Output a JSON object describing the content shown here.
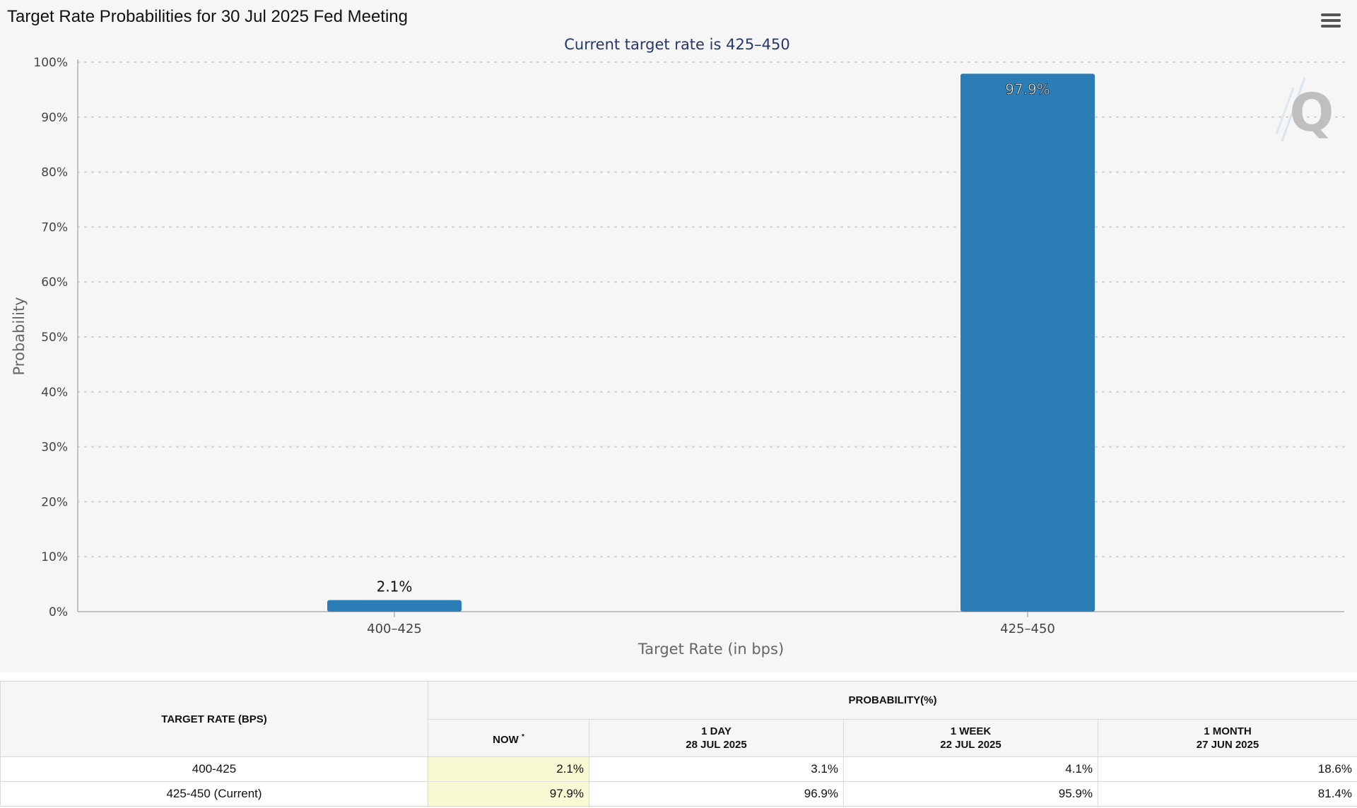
{
  "chart_data": {
    "type": "bar",
    "title": "Target Rate Probabilities for 30 Jul 2025 Fed Meeting",
    "subtitle": "Current target rate is 425–450",
    "xlabel": "Target Rate (in bps)",
    "ylabel": "Probability",
    "categories": [
      "400–425",
      "425–450"
    ],
    "values": [
      2.1,
      97.9
    ],
    "data_labels": [
      "2.1%",
      "97.9%"
    ],
    "ylim": [
      0,
      100
    ],
    "yticks": [
      0,
      10,
      20,
      30,
      40,
      50,
      60,
      70,
      80,
      90,
      100
    ],
    "ytick_suffix": "%",
    "grid": "dotted horizontal",
    "bar_color": "#2a7db5",
    "subtitle_color": "#23386b"
  },
  "watermark": {
    "letter": "Q"
  },
  "menu": {
    "icon": "hamburger-menu-icon"
  },
  "table": {
    "rate_header": "TARGET RATE (BPS)",
    "prob_header": "PROBABILITY(%)",
    "columns": [
      {
        "label": "NOW",
        "marker": "*"
      },
      {
        "label": "1 DAY",
        "date": "28 JUL 2025"
      },
      {
        "label": "1 WEEK",
        "date": "22 JUL 2025"
      },
      {
        "label": "1 MONTH",
        "date": "27 JUN 2025"
      }
    ],
    "rows": [
      {
        "rate": "400-425",
        "values": [
          "2.1%",
          "3.1%",
          "4.1%",
          "18.6%"
        ]
      },
      {
        "rate": "425-450 (Current)",
        "values": [
          "97.9%",
          "96.9%",
          "95.9%",
          "81.4%"
        ]
      }
    ]
  }
}
